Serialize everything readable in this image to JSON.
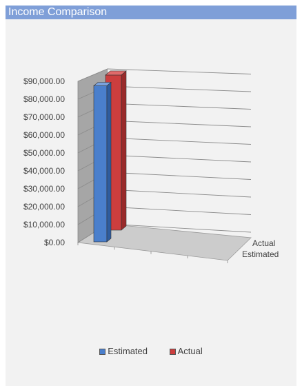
{
  "window": {
    "title": "Income Comparison"
  },
  "chart_data": {
    "type": "bar",
    "title": "Income Comparison",
    "depth_labels": [
      "Actual",
      "Estimated"
    ],
    "series": [
      {
        "name": "Estimated",
        "values": [
          88000
        ],
        "color": "#4a7fcc"
      },
      {
        "name": "Actual",
        "values": [
          90000
        ],
        "color": "#cc3e3e"
      }
    ],
    "y_ticks": [
      "$0.00",
      "$10,000.00",
      "$20,000.00",
      "$30,000.00",
      "$40,000.00",
      "$50,000.00",
      "$60,000.00",
      "$70,000.00",
      "$80,000.00",
      "$90,000.00"
    ],
    "ylim": [
      0,
      90000
    ],
    "grid": true,
    "legend_position": "bottom",
    "style": "3d-column"
  }
}
